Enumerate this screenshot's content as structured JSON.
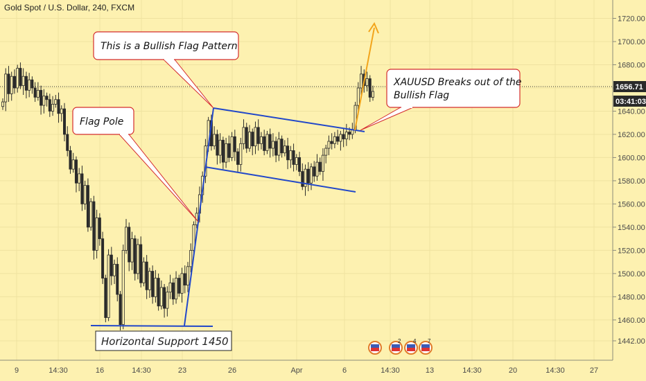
{
  "header": {
    "title": "Gold Spot / U.S. Dollar, 240, FXCM"
  },
  "price_tags": {
    "last_price": "1656.71",
    "countdown": "03:41:03"
  },
  "annotations": {
    "bullish_flag": "This is a Bullish Flag Pattern",
    "flag_pole": "Flag Pole",
    "breakout_line1": "XAUUSD Breaks out of the",
    "breakout_line2": "Bullish Flag",
    "support": "Horizontal Support 1450"
  },
  "events": [
    "",
    "2",
    "4",
    "7"
  ],
  "colors": {
    "background": "#fdf1b0",
    "candle": "#2a2a2a",
    "flag_line": "#2147c9",
    "projection_arrow": "#f2a41b",
    "callout_border": "#d42c2c",
    "price_tag_bg": "#2a2a2a"
  },
  "chart_data": {
    "type": "candlestick",
    "title": "Gold Spot / U.S. Dollar, 240, FXCM",
    "y_axis": {
      "ticks": [
        1442,
        1460,
        1480,
        1500,
        1520,
        1540,
        1560,
        1580,
        1600,
        1620,
        1640,
        1660,
        1680,
        1700,
        1720
      ],
      "tick_labels": [
        "1442.00",
        "1460.00",
        "1480.00",
        "1500.00",
        "1520.00",
        "1540.00",
        "1560.00",
        "1580.00",
        "1600.00",
        "1620.00",
        "1640.00",
        "1660.00",
        "1680.00",
        "1700.00",
        "1720.00"
      ],
      "range": [
        1433,
        1735
      ]
    },
    "x_axis": {
      "tick_labels": [
        "9",
        "14:30",
        "16",
        "14:30",
        "23",
        "26",
        "Apr",
        "6",
        "14:30",
        "13",
        "14:30",
        "20",
        "14:30",
        "27"
      ]
    },
    "last_price": 1656.71,
    "flag_pole": {
      "from": 1453,
      "to": 1632
    },
    "flag_upper": [
      1632,
      1618
    ],
    "flag_lower": [
      1587,
      1566
    ],
    "support_level": 1450,
    "closes": [
      1648,
      1672,
      1655,
      1670,
      1660,
      1677,
      1662,
      1670,
      1658,
      1667,
      1660,
      1652,
      1658,
      1645,
      1653,
      1650,
      1640,
      1646,
      1650,
      1638,
      1642,
      1620,
      1606,
      1590,
      1598,
      1578,
      1586,
      1560,
      1576,
      1540,
      1562,
      1520,
      1548,
      1530,
      1496,
      1462,
      1516,
      1498,
      1508,
      1482,
      1456,
      1520,
      1540,
      1510,
      1530,
      1500,
      1525,
      1492,
      1510,
      1486,
      1502,
      1480,
      1496,
      1472,
      1488,
      1470,
      1484,
      1492,
      1478,
      1496,
      1483,
      1500,
      1490,
      1506,
      1520,
      1542,
      1552,
      1568,
      1584,
      1610,
      1632,
      1610,
      1620,
      1602,
      1615,
      1596,
      1612,
      1600,
      1618,
      1605,
      1594,
      1612,
      1626,
      1608,
      1622,
      1610,
      1626,
      1612,
      1618,
      1606,
      1620,
      1608,
      1614,
      1602,
      1616,
      1604,
      1610,
      1598,
      1606,
      1594,
      1600,
      1588,
      1575,
      1590,
      1578,
      1592,
      1584,
      1596,
      1588,
      1602,
      1608,
      1614,
      1612,
      1618,
      1614,
      1620,
      1616,
      1622,
      1620,
      1624,
      1645,
      1660,
      1672,
      1662,
      1668,
      1652,
      1657
    ]
  }
}
